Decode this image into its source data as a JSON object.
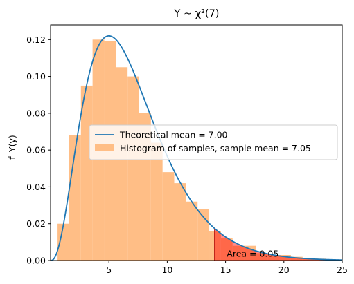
{
  "chart_data": {
    "type": "bar",
    "title": "Y ~ χ²(7)",
    "ylabel": "f_Y(y)",
    "xlabel": "",
    "xlim": [
      0,
      25
    ],
    "ylim": [
      0,
      0.128
    ],
    "x_ticks": [
      5,
      10,
      15,
      20,
      25
    ],
    "y_ticks": [
      0.0,
      0.02,
      0.04,
      0.06,
      0.08,
      0.1,
      0.12
    ],
    "grid": false,
    "legend_position": "center-right",
    "histogram": {
      "name": "Histogram of samples, sample mean = 7.05",
      "color": "#ffbe86",
      "bin_width": 1.0,
      "bins": [
        {
          "x0": 0.6,
          "x1": 1.6,
          "value": 0.02
        },
        {
          "x0": 1.6,
          "x1": 2.6,
          "value": 0.068
        },
        {
          "x0": 2.6,
          "x1": 3.6,
          "value": 0.095
        },
        {
          "x0": 3.6,
          "x1": 4.6,
          "value": 0.12
        },
        {
          "x0": 4.6,
          "x1": 5.6,
          "value": 0.119
        },
        {
          "x0": 5.6,
          "x1": 6.6,
          "value": 0.105
        },
        {
          "x0": 6.6,
          "x1": 7.6,
          "value": 0.1
        },
        {
          "x0": 7.6,
          "x1": 8.6,
          "value": 0.08
        },
        {
          "x0": 8.6,
          "x1": 9.6,
          "value": 0.064
        },
        {
          "x0": 9.6,
          "x1": 10.6,
          "value": 0.048
        },
        {
          "x0": 10.6,
          "x1": 11.6,
          "value": 0.042
        },
        {
          "x0": 11.6,
          "x1": 12.6,
          "value": 0.032
        },
        {
          "x0": 12.6,
          "x1": 13.6,
          "value": 0.028
        },
        {
          "x0": 13.6,
          "x1": 14.6,
          "value": 0.016
        },
        {
          "x0": 14.6,
          "x1": 15.6,
          "value": 0.012
        },
        {
          "x0": 15.6,
          "x1": 16.6,
          "value": 0.008
        },
        {
          "x0": 16.6,
          "x1": 17.6,
          "value": 0.008
        },
        {
          "x0": 17.6,
          "x1": 18.6,
          "value": 0.004
        },
        {
          "x0": 18.6,
          "x1": 19.6,
          "value": 0.003
        },
        {
          "x0": 19.6,
          "x1": 20.6,
          "value": 0.003
        },
        {
          "x0": 20.6,
          "x1": 21.6,
          "value": 0.002
        },
        {
          "x0": 21.6,
          "x1": 22.6,
          "value": 0.001
        },
        {
          "x0": 22.6,
          "x1": 23.6,
          "value": 0.001
        }
      ]
    },
    "series": [
      {
        "name": "Theoretical mean = 7.00",
        "type": "line",
        "distribution": "chi-square",
        "dof": 7,
        "color": "#1f77b4"
      }
    ],
    "tail_region": {
      "x_start": 14.07,
      "x_end": 25,
      "color": "#ff0000",
      "edge_color": "#b00000"
    },
    "annotation": {
      "text": "Area = 0.05",
      "x": 15.1,
      "y": 0.001
    }
  }
}
